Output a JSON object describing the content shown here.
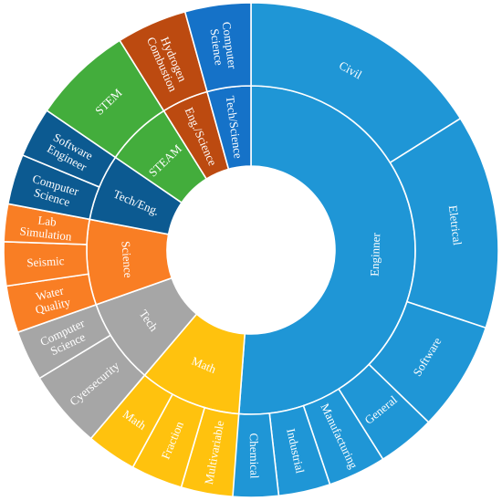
{
  "chart_data": {
    "type": "sunburst",
    "title": "",
    "inner": [
      {
        "label": "Enginner",
        "value": 50.0,
        "color": "#1f96d6"
      },
      {
        "label": "Math",
        "value": 9.8,
        "color": "#ffc20e"
      },
      {
        "label": "Tech",
        "value": 8.2,
        "color": "#a6a6a6"
      },
      {
        "label": "Science",
        "value": 8.2,
        "color": "#f97e24"
      },
      {
        "label": "Tech/Eng.",
        "value": 6.4,
        "color": "#0c5a91"
      },
      {
        "label": "STEAM",
        "value": 6.4,
        "color": "#43ad3c"
      },
      {
        "label": "Eng./Science",
        "value": 4.5,
        "color": "#bc4a10"
      },
      {
        "label": "Tech/Science",
        "value": 4.2,
        "color": "#1572c8"
      }
    ],
    "outer": [
      {
        "label": "Civil",
        "parent": "Enginner",
        "value": 15.7
      },
      {
        "label": "Eletrical",
        "parent": "Enginner",
        "value": 13.7
      },
      {
        "label": "Software",
        "parent": "Enginner",
        "value": 7.0
      },
      {
        "label": "General",
        "parent": "Enginner",
        "value": 3.7
      },
      {
        "label": "Manufacturing",
        "parent": "Enginner",
        "value": 3.7
      },
      {
        "label": "Industrial",
        "parent": "Enginner",
        "value": 3.3
      },
      {
        "label": "Chemical",
        "parent": "Enginner",
        "value": 3.0
      },
      {
        "label": "Multivariable",
        "parent": "Math",
        "value": 3.3
      },
      {
        "label": "Fraction",
        "parent": "Math",
        "value": 3.3
      },
      {
        "label": "Math",
        "parent": "Math",
        "value": 3.2
      },
      {
        "label": "Cyersecurity",
        "parent": "Tech",
        "value": 5.0
      },
      {
        "label": "Computer Science",
        "parent": "Tech",
        "value": 3.2
      },
      {
        "label": "Water Quality",
        "parent": "Science",
        "value": 3.0
      },
      {
        "label": "Seismic",
        "parent": "Science",
        "value": 2.8
      },
      {
        "label": "Lab Simulation",
        "parent": "Science",
        "value": 2.4
      },
      {
        "label": "Computer Science",
        "parent": "Tech/Eng.",
        "value": 3.2
      },
      {
        "label": "Software Engineer",
        "parent": "Tech/Eng.",
        "value": 3.2
      },
      {
        "label": "STEM",
        "parent": "STEAM",
        "value": 6.4
      },
      {
        "label": "Hydrogen Combustion",
        "parent": "Eng./Science",
        "value": 4.5
      },
      {
        "label": "Computer Science",
        "parent": "Tech/Science",
        "value": 4.2
      }
    ]
  }
}
